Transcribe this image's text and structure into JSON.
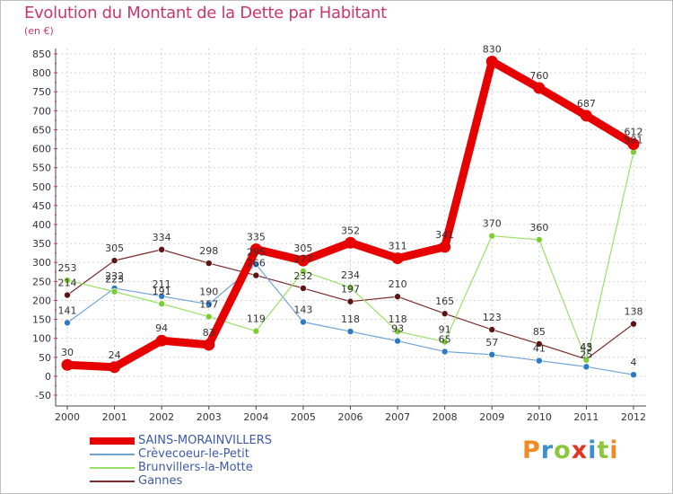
{
  "header": {
    "title": "Evolution du Montant de la Dette par Habitant",
    "unit": "(en €)"
  },
  "logo": {
    "letters": [
      "P",
      "r",
      "o",
      "x",
      "i",
      "t",
      "i"
    ],
    "colors": [
      "#f08a24",
      "#3b8fd8",
      "#8cc63f",
      "#e2351f",
      "#3b8fd8",
      "#8cc63f",
      "#f08a24"
    ]
  },
  "legend": {
    "items": [
      {
        "label": "SAINS-MORAINVILLERS",
        "color": "#e60000"
      },
      {
        "label": "Crèvecoeur-le-Petit",
        "color": "#6fa3d8"
      },
      {
        "label": "Brunvillers-la-Motte",
        "color": "#99e066"
      },
      {
        "label": "Gannes",
        "color": "#7a2b2b"
      }
    ]
  },
  "chart_data": {
    "type": "line",
    "title": "Evolution du Montant de la Dette par Habitant",
    "ylabel": "(en €)",
    "xlabel": "",
    "x": [
      "2000",
      "2001",
      "2002",
      "2003",
      "2004",
      "2005",
      "2006",
      "2007",
      "2008",
      "2009",
      "2010",
      "2011",
      "2012"
    ],
    "ylim": [
      -50,
      850
    ],
    "yticks": [
      "-50",
      "0",
      "50",
      "100",
      "150",
      "200",
      "250",
      "300",
      "350",
      "400",
      "450",
      "500",
      "550",
      "600",
      "650",
      "700",
      "750",
      "800",
      "850"
    ],
    "grid": true,
    "legend_position": "bottom-left",
    "series": [
      {
        "name": "Gannes",
        "color": "#7a2b2b",
        "dot": "#5c1414",
        "values": [
          214,
          305,
          334,
          298,
          266,
          232,
          197,
          210,
          165,
          123,
          85,
          45,
          138
        ]
      },
      {
        "name": "Crèvecoeur-le-Petit",
        "color": "#6fa3d8",
        "dot": "#2e7ac4",
        "values": [
          141,
          232,
          211,
          190,
          295,
          143,
          118,
          93,
          65,
          57,
          41,
          25,
          4
        ]
      },
      {
        "name": "Brunvillers-la-Motte",
        "color": "#99e066",
        "dot": "#7ccc33",
        "values": [
          253,
          223,
          191,
          157,
          119,
          277,
          234,
          118,
          91,
          370,
          360,
          43,
          591
        ]
      },
      {
        "name": "SAINS-MORAINVILLERS",
        "color": "#e60000",
        "dot": "#e60000",
        "values": [
          30,
          24,
          94,
          83,
          335,
          305,
          352,
          311,
          341,
          830,
          760,
          687,
          612
        ]
      }
    ]
  }
}
